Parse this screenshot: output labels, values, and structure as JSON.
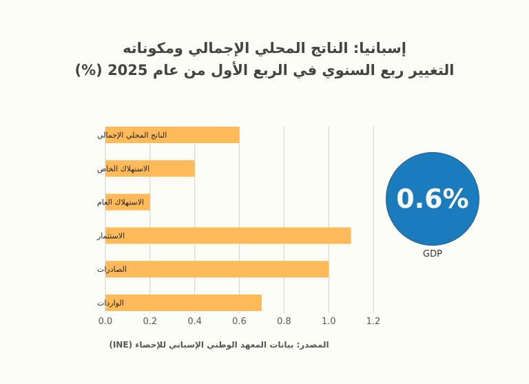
{
  "title_line1": "إسبانيا: الناتج المحلي الإجمالي ومكوناته",
  "title_line2": "التغيير ربع السنوي في الربع الأول من عام 2025 (%)",
  "source": "المصدر: بيانات المعهد الوطني الإسباني للإحصاء (INE)",
  "kpi": {
    "value": "0.6%",
    "label": "GDP",
    "color": "#1a7bbd"
  },
  "chart_data": {
    "type": "bar",
    "orientation": "horizontal",
    "categories": [
      "الناتج المحلي الإجمالي",
      "الاستهلاك الخاص",
      "الاستهلاك العام",
      "الاستثمار",
      "الصادرات",
      "الواردات"
    ],
    "values": [
      0.6,
      0.4,
      0.2,
      1.1,
      1.0,
      0.7
    ],
    "xlim": [
      0,
      1.2
    ],
    "xticks": [
      "0.0",
      "0.2",
      "0.4",
      "0.6",
      "0.8",
      "1.0",
      "1.2"
    ],
    "grid": true,
    "bar_color": "#ffbb5a"
  }
}
